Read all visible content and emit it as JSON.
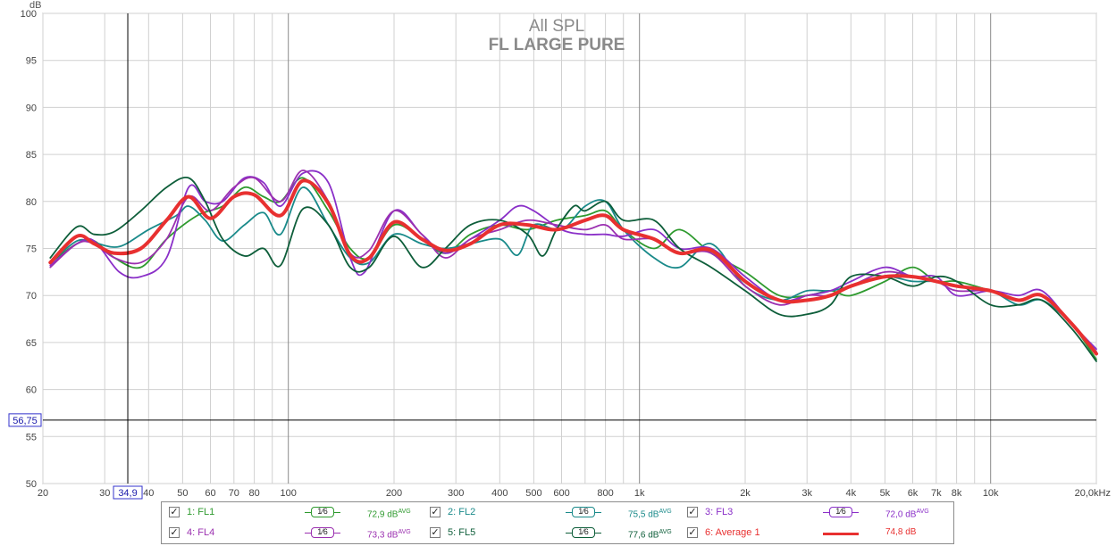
{
  "chart_data": {
    "type": "line",
    "title": "All SPL",
    "subtitle": "FL LARGE PURE",
    "ylabel": "dB",
    "ylim": [
      50,
      100
    ],
    "xlim": [
      20,
      20000
    ],
    "x_scale": "log",
    "grid": true,
    "y_ticks": [
      "50",
      "55",
      "60",
      "65",
      "70",
      "75",
      "80",
      "85",
      "90",
      "95",
      "100"
    ],
    "x_ticks": [
      {
        "v": 20,
        "label": "20"
      },
      {
        "v": 30,
        "label": "30"
      },
      {
        "v": 40,
        "label": "40"
      },
      {
        "v": 50,
        "label": "50"
      },
      {
        "v": 60,
        "label": "60"
      },
      {
        "v": 70,
        "label": "70"
      },
      {
        "v": 80,
        "label": "80"
      },
      {
        "v": 100,
        "label": "100"
      },
      {
        "v": 200,
        "label": "200"
      },
      {
        "v": 300,
        "label": "300"
      },
      {
        "v": 400,
        "label": "400"
      },
      {
        "v": 500,
        "label": "500"
      },
      {
        "v": 600,
        "label": "600"
      },
      {
        "v": 800,
        "label": "800"
      },
      {
        "v": 1000,
        "label": "1k"
      },
      {
        "v": 2000,
        "label": "2k"
      },
      {
        "v": 3000,
        "label": "3k"
      },
      {
        "v": 4000,
        "label": "4k"
      },
      {
        "v": 5000,
        "label": "5k"
      },
      {
        "v": 6000,
        "label": "6k"
      },
      {
        "v": 7000,
        "label": "7k"
      },
      {
        "v": 8000,
        "label": "8k"
      },
      {
        "v": 10000,
        "label": "10k"
      },
      {
        "v": 20000,
        "label": "20,0kHz"
      }
    ],
    "cursor": {
      "x": 34.9,
      "y": 56.75,
      "x_label": "34,9",
      "y_label": "56,75"
    },
    "series": [
      {
        "name": "1: FL1",
        "color": "#2e9a2e",
        "width": 1.8,
        "points": [
          [
            21,
            73.5
          ],
          [
            25,
            75.5
          ],
          [
            28,
            75.8
          ],
          [
            32,
            74
          ],
          [
            38,
            73
          ],
          [
            45,
            76
          ],
          [
            55,
            78.5
          ],
          [
            65,
            79.5
          ],
          [
            75,
            81.5
          ],
          [
            85,
            80.5
          ],
          [
            95,
            80
          ],
          [
            110,
            82.5
          ],
          [
            130,
            79
          ],
          [
            150,
            75
          ],
          [
            170,
            74
          ],
          [
            200,
            77.5
          ],
          [
            240,
            76
          ],
          [
            280,
            74.5
          ],
          [
            330,
            76.5
          ],
          [
            400,
            77.5
          ],
          [
            480,
            77
          ],
          [
            580,
            78
          ],
          [
            700,
            78.5
          ],
          [
            800,
            79
          ],
          [
            900,
            77
          ],
          [
            1100,
            75
          ],
          [
            1300,
            77
          ],
          [
            1600,
            74.5
          ],
          [
            2000,
            72.5
          ],
          [
            2500,
            70
          ],
          [
            3000,
            70
          ],
          [
            3500,
            70.5
          ],
          [
            4000,
            70
          ],
          [
            5000,
            71.5
          ],
          [
            6000,
            73
          ],
          [
            7000,
            71.5
          ],
          [
            8000,
            71.5
          ],
          [
            10000,
            70.5
          ],
          [
            12000,
            69.5
          ],
          [
            14000,
            70
          ],
          [
            17000,
            67
          ],
          [
            20000,
            63.2
          ]
        ]
      },
      {
        "name": "2: FL2",
        "color": "#1a8a8a",
        "width": 1.8,
        "points": [
          [
            21,
            73.5
          ],
          [
            25,
            75.8
          ],
          [
            28,
            75.6
          ],
          [
            33,
            75.2
          ],
          [
            40,
            77
          ],
          [
            48,
            78.5
          ],
          [
            52,
            79.5
          ],
          [
            58,
            78
          ],
          [
            65,
            75.8
          ],
          [
            75,
            77.5
          ],
          [
            85,
            78.8
          ],
          [
            95,
            76.5
          ],
          [
            110,
            81.5
          ],
          [
            130,
            77.5
          ],
          [
            150,
            74
          ],
          [
            170,
            73.5
          ],
          [
            200,
            76.5
          ],
          [
            240,
            75.5
          ],
          [
            280,
            75
          ],
          [
            330,
            75.5
          ],
          [
            400,
            76
          ],
          [
            450,
            74.3
          ],
          [
            500,
            77.5
          ],
          [
            600,
            77
          ],
          [
            700,
            79.5
          ],
          [
            800,
            80
          ],
          [
            900,
            77
          ],
          [
            1100,
            74
          ],
          [
            1300,
            73
          ],
          [
            1600,
            75.5
          ],
          [
            2000,
            71
          ],
          [
            2500,
            69.5
          ],
          [
            3000,
            70.5
          ],
          [
            3500,
            70.5
          ],
          [
            4000,
            71
          ],
          [
            5000,
            72
          ],
          [
            6000,
            71.5
          ],
          [
            7000,
            71.5
          ],
          [
            8000,
            71
          ],
          [
            10000,
            70.5
          ],
          [
            12000,
            69
          ],
          [
            14000,
            69.5
          ],
          [
            17000,
            67
          ],
          [
            20000,
            64
          ]
        ]
      },
      {
        "name": "3: FL3",
        "color": "#8a2fc8",
        "width": 1.8,
        "points": [
          [
            21,
            73.2
          ],
          [
            25,
            75.5
          ],
          [
            28,
            75.8
          ],
          [
            33,
            72.5
          ],
          [
            38,
            72
          ],
          [
            45,
            74
          ],
          [
            52,
            81.5
          ],
          [
            58,
            80
          ],
          [
            65,
            80
          ],
          [
            75,
            82.5
          ],
          [
            85,
            82
          ],
          [
            95,
            79.5
          ],
          [
            110,
            83
          ],
          [
            130,
            82
          ],
          [
            150,
            74
          ],
          [
            165,
            72.5
          ],
          [
            200,
            79
          ],
          [
            240,
            76.5
          ],
          [
            280,
            74.5
          ],
          [
            330,
            76
          ],
          [
            400,
            78
          ],
          [
            450,
            79.5
          ],
          [
            500,
            79
          ],
          [
            600,
            77
          ],
          [
            700,
            76.5
          ],
          [
            800,
            76.5
          ],
          [
            900,
            76.3
          ],
          [
            1100,
            77
          ],
          [
            1300,
            75
          ],
          [
            1600,
            75
          ],
          [
            2000,
            72
          ],
          [
            2500,
            69.5
          ],
          [
            3000,
            70
          ],
          [
            3500,
            70.5
          ],
          [
            4000,
            71.5
          ],
          [
            5000,
            73
          ],
          [
            6000,
            72
          ],
          [
            7000,
            72
          ],
          [
            8000,
            70
          ],
          [
            10000,
            70.5
          ],
          [
            12000,
            70
          ],
          [
            14000,
            70.5
          ],
          [
            17000,
            67
          ],
          [
            20000,
            64.3
          ]
        ]
      },
      {
        "name": "4: FL4",
        "color": "#9b30b0",
        "width": 1.8,
        "points": [
          [
            21,
            73
          ],
          [
            25,
            75.5
          ],
          [
            28,
            75.5
          ],
          [
            32,
            74
          ],
          [
            38,
            73.5
          ],
          [
            45,
            76
          ],
          [
            52,
            80.5
          ],
          [
            60,
            79
          ],
          [
            70,
            81.5
          ],
          [
            80,
            82.5
          ],
          [
            95,
            80
          ],
          [
            110,
            83.3
          ],
          [
            130,
            80
          ],
          [
            150,
            74.5
          ],
          [
            170,
            74.8
          ],
          [
            200,
            79
          ],
          [
            240,
            76.5
          ],
          [
            280,
            74
          ],
          [
            330,
            76
          ],
          [
            400,
            77
          ],
          [
            480,
            78
          ],
          [
            580,
            77.5
          ],
          [
            700,
            77
          ],
          [
            800,
            77.5
          ],
          [
            900,
            76
          ],
          [
            1100,
            76
          ],
          [
            1300,
            74.5
          ],
          [
            1600,
            74.5
          ],
          [
            2000,
            71
          ],
          [
            2500,
            69
          ],
          [
            3000,
            70
          ],
          [
            3500,
            70
          ],
          [
            4000,
            71
          ],
          [
            5000,
            72.5
          ],
          [
            6000,
            72
          ],
          [
            7000,
            71.5
          ],
          [
            8000,
            70.5
          ],
          [
            10000,
            70.5
          ],
          [
            12000,
            69.5
          ],
          [
            14000,
            70
          ],
          [
            17000,
            67
          ],
          [
            20000,
            64
          ]
        ]
      },
      {
        "name": "5: FL5",
        "color": "#0e5e3a",
        "width": 1.8,
        "points": [
          [
            21,
            74
          ],
          [
            25,
            77.3
          ],
          [
            28,
            76.5
          ],
          [
            32,
            76.8
          ],
          [
            38,
            79
          ],
          [
            45,
            81.5
          ],
          [
            52,
            82.5
          ],
          [
            58,
            80
          ],
          [
            65,
            76
          ],
          [
            75,
            74.2
          ],
          [
            85,
            75
          ],
          [
            95,
            73.2
          ],
          [
            110,
            79.2
          ],
          [
            130,
            77.5
          ],
          [
            150,
            73
          ],
          [
            170,
            73
          ],
          [
            200,
            76.3
          ],
          [
            240,
            73
          ],
          [
            280,
            75
          ],
          [
            330,
            77.5
          ],
          [
            400,
            78
          ],
          [
            480,
            76.5
          ],
          [
            530,
            74.2
          ],
          [
            580,
            77
          ],
          [
            650,
            79.5
          ],
          [
            700,
            79
          ],
          [
            800,
            80
          ],
          [
            900,
            78
          ],
          [
            1100,
            78
          ],
          [
            1300,
            75
          ],
          [
            1600,
            73
          ],
          [
            2000,
            70.5
          ],
          [
            2500,
            68
          ],
          [
            3000,
            68
          ],
          [
            3500,
            69
          ],
          [
            4000,
            72
          ],
          [
            5000,
            72
          ],
          [
            6000,
            71
          ],
          [
            7000,
            72
          ],
          [
            8000,
            71.5
          ],
          [
            10000,
            69
          ],
          [
            12000,
            69
          ],
          [
            14000,
            69.5
          ],
          [
            17000,
            66.5
          ],
          [
            20000,
            63
          ]
        ]
      },
      {
        "name": "6: Average 1",
        "color": "#e83030",
        "width": 4,
        "points": [
          [
            21,
            73.5
          ],
          [
            25,
            76.3
          ],
          [
            28,
            75.5
          ],
          [
            32,
            74.5
          ],
          [
            38,
            75
          ],
          [
            45,
            78
          ],
          [
            52,
            80.5
          ],
          [
            60,
            78.2
          ],
          [
            70,
            80.5
          ],
          [
            80,
            80.7
          ],
          [
            95,
            78.5
          ],
          [
            110,
            82.2
          ],
          [
            130,
            79.8
          ],
          [
            150,
            74.3
          ],
          [
            170,
            74
          ],
          [
            200,
            77.8
          ],
          [
            240,
            76
          ],
          [
            280,
            74.8
          ],
          [
            330,
            75.5
          ],
          [
            400,
            77.5
          ],
          [
            480,
            77.5
          ],
          [
            580,
            77
          ],
          [
            700,
            78
          ],
          [
            800,
            78.5
          ],
          [
            900,
            77
          ],
          [
            1100,
            76
          ],
          [
            1300,
            74.5
          ],
          [
            1600,
            74.8
          ],
          [
            2000,
            71.5
          ],
          [
            2500,
            69.5
          ],
          [
            3000,
            69.5
          ],
          [
            3500,
            70
          ],
          [
            4000,
            71
          ],
          [
            5000,
            72
          ],
          [
            6000,
            72
          ],
          [
            7000,
            71.5
          ],
          [
            8000,
            71
          ],
          [
            10000,
            70.5
          ],
          [
            12000,
            69.5
          ],
          [
            14000,
            70
          ],
          [
            17000,
            67
          ],
          [
            20000,
            63.8
          ]
        ]
      }
    ]
  },
  "legend": [
    {
      "name": "1: FL1",
      "color": "#2e9a2e",
      "smooth": "1⁄6",
      "value": "72,9 dB",
      "sup": "AVG"
    },
    {
      "name": "2: FL2",
      "color": "#1a8a8a",
      "smooth": "1⁄6",
      "value": "75,5 dB",
      "sup": "AVG"
    },
    {
      "name": "3: FL3",
      "color": "#8a2fc8",
      "smooth": "1⁄6",
      "value": "72,0 dB",
      "sup": "AVG"
    },
    {
      "name": "4: FL4",
      "color": "#9b30b0",
      "smooth": "1⁄6",
      "value": "73,3 dB",
      "sup": "AVG"
    },
    {
      "name": "5: FL5",
      "color": "#0e5e3a",
      "smooth": "1⁄6",
      "value": "77,6 dB",
      "sup": "AVG"
    },
    {
      "name": "6: Average 1",
      "color": "#e83030",
      "smooth": "",
      "value": "74,8 dB",
      "sup": ""
    }
  ],
  "checkbox_glyph": "✓"
}
